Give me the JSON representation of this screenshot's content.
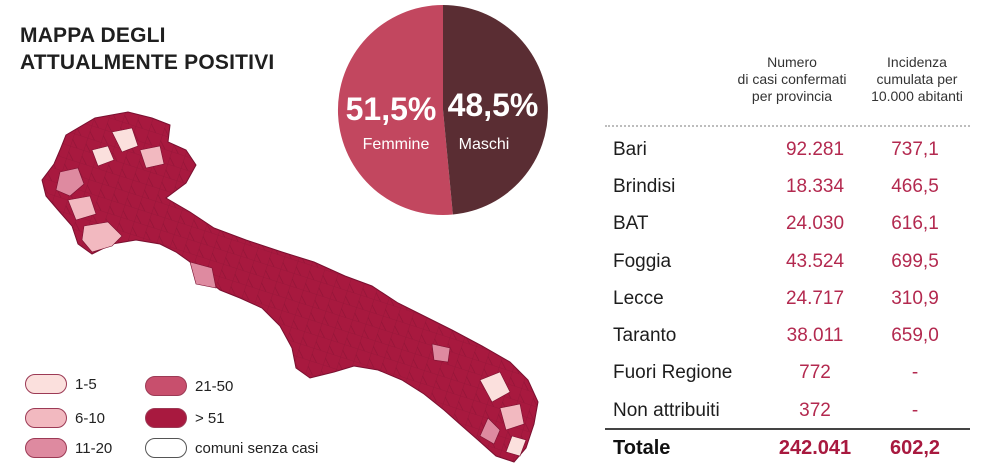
{
  "title_lines": [
    "MAPPA DEGLI",
    "ATTUALMENTE POSITIVI"
  ],
  "legend": [
    {
      "label": "1-5",
      "color": "#fbe0dd"
    },
    {
      "label": "6-10",
      "color": "#f2b9c0"
    },
    {
      "label": "11-20",
      "color": "#de8aa0"
    },
    {
      "label": "21-50",
      "color": "#c84f6d"
    },
    {
      "label": "> 51",
      "color": "#a8193f"
    },
    {
      "label": "comuni senza casi",
      "color": "#ffffff"
    }
  ],
  "map_colors": {
    "fill": "#a8193f",
    "border": "#7a1030",
    "light": "#f2b9c0",
    "mid": "#de8aa0",
    "pale": "#fbe0dd"
  },
  "chart_data": {
    "type": "pie",
    "slices": [
      {
        "label": "Femmine",
        "value": 51.5,
        "display": "51,5%",
        "color": "#c2475f"
      },
      {
        "label": "Maschi",
        "value": 48.5,
        "display": "48,5%",
        "color": "#5a2d33"
      }
    ]
  },
  "table": {
    "col_headers": [
      [
        "Numero",
        "di casi confermati",
        "per provincia"
      ],
      [
        "Incidenza",
        "cumulata per",
        "10.000 abitanti"
      ]
    ],
    "rows": [
      {
        "name": "Bari",
        "cases": "92.281",
        "incidence": "737,1"
      },
      {
        "name": "Brindisi",
        "cases": "18.334",
        "incidence": "466,5"
      },
      {
        "name": "BAT",
        "cases": "24.030",
        "incidence": "616,1"
      },
      {
        "name": "Foggia",
        "cases": "43.524",
        "incidence": "699,5"
      },
      {
        "name": "Lecce",
        "cases": "24.717",
        "incidence": "310,9"
      },
      {
        "name": "Taranto",
        "cases": "38.011",
        "incidence": "659,0"
      },
      {
        "name": "Fuori Regione",
        "cases": "772",
        "incidence": "-"
      },
      {
        "name": "Non attribuiti",
        "cases": "372",
        "incidence": "-"
      }
    ],
    "total": {
      "name": "Totale",
      "cases": "242.041",
      "incidence": "602,2"
    }
  }
}
